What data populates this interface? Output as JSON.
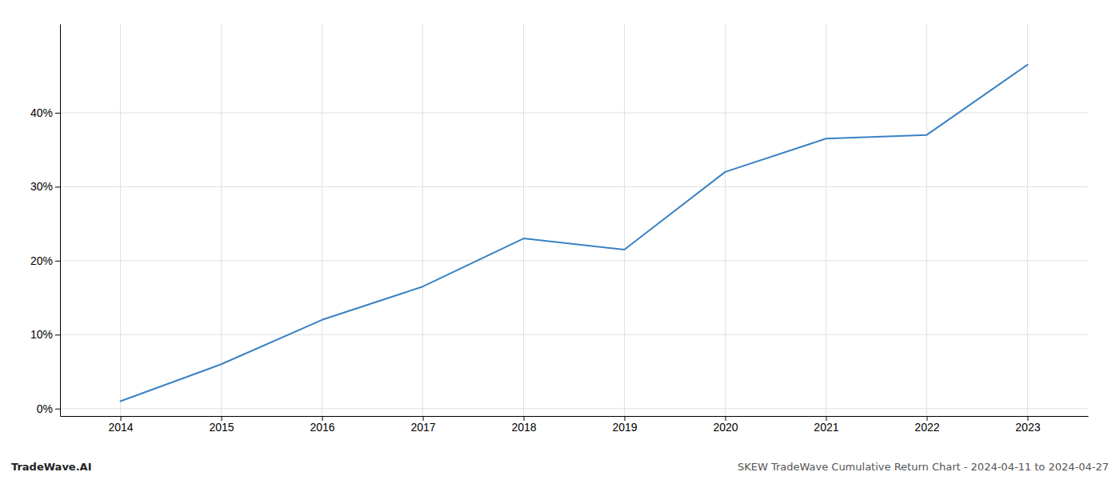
{
  "chart_data": {
    "type": "line",
    "x": [
      2014,
      2015,
      2016,
      2017,
      2018,
      2019,
      2020,
      2021,
      2022,
      2023
    ],
    "values": [
      1.0,
      6.0,
      12.0,
      16.5,
      23.0,
      21.5,
      32.0,
      36.5,
      37.0,
      46.5
    ],
    "color": "#3a82c4",
    "xlim": [
      2013.4,
      2023.6
    ],
    "ylim": [
      -1,
      52
    ],
    "xticks": [
      2014,
      2015,
      2016,
      2017,
      2018,
      2019,
      2020,
      2021,
      2022,
      2023
    ],
    "yticks": [
      {
        "value": 0,
        "label": "0%"
      },
      {
        "value": 10,
        "label": "10%"
      },
      {
        "value": 20,
        "label": "20%"
      },
      {
        "value": 30,
        "label": "30%"
      },
      {
        "value": 40,
        "label": "40%"
      }
    ],
    "grid": true,
    "annotations": [
      "TradeWave.AI",
      "SKEW TradeWave Cumulative Return Chart - 2024-04-11 to 2024-04-27"
    ]
  }
}
